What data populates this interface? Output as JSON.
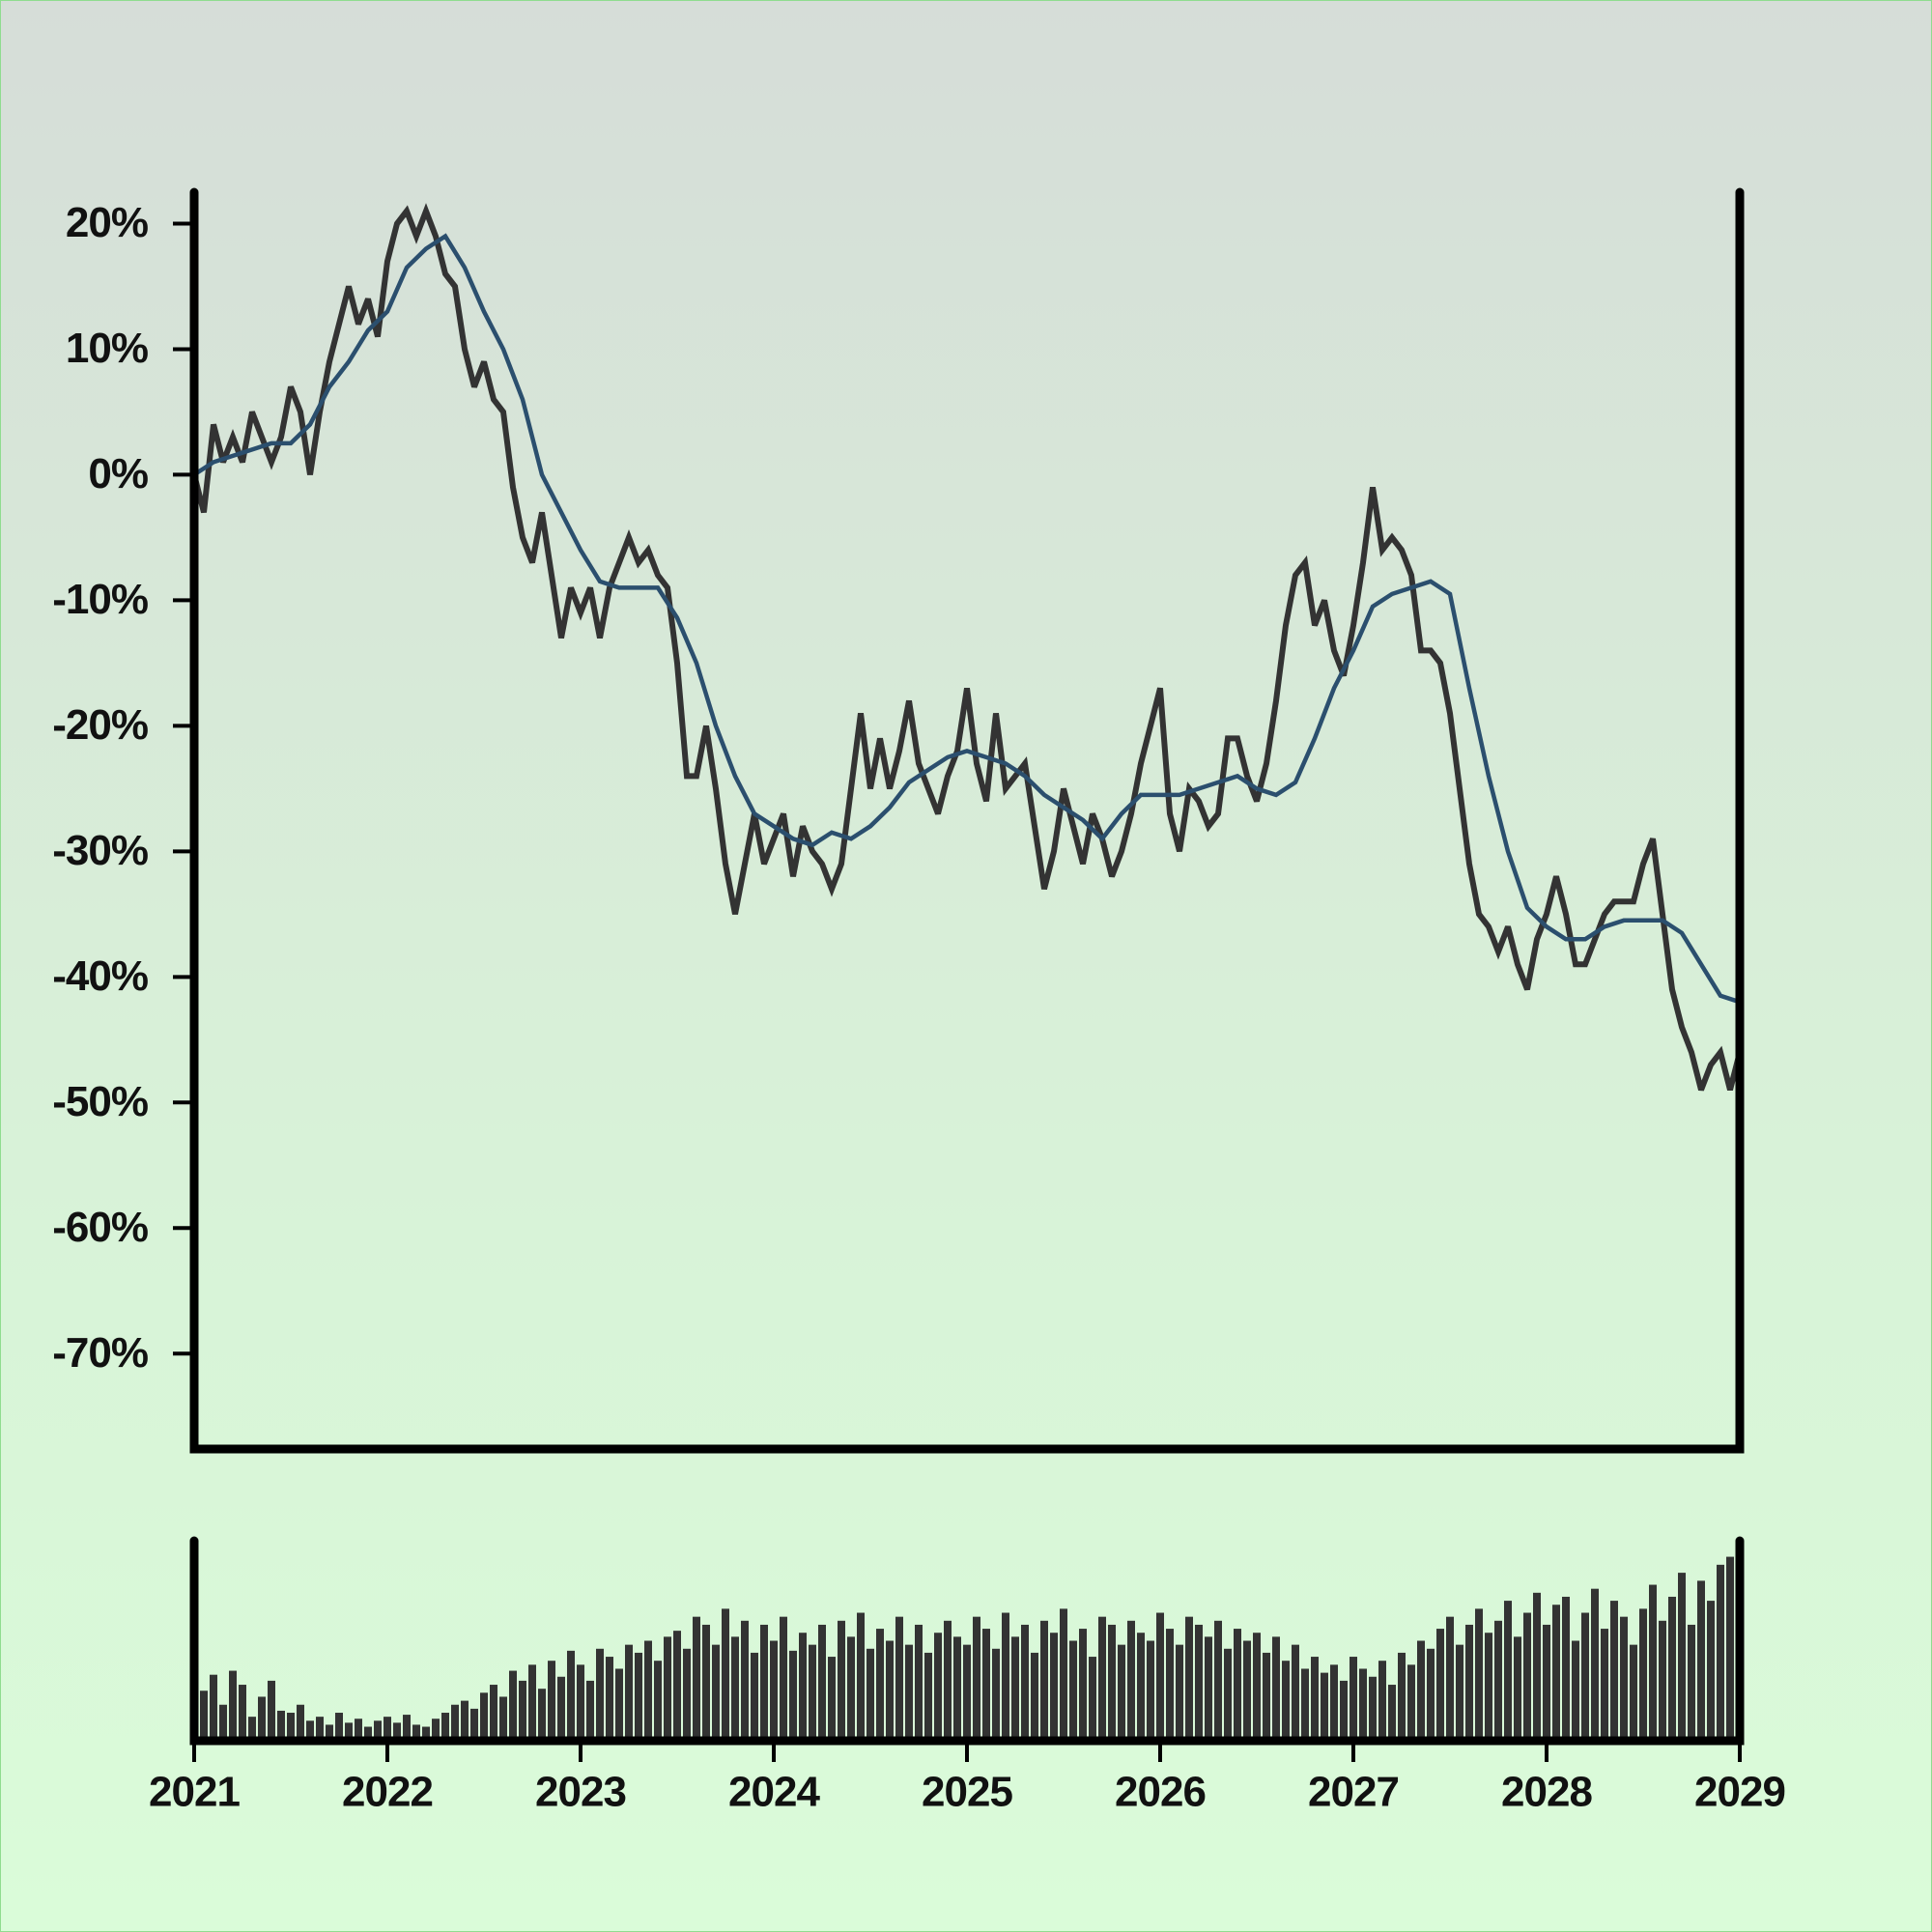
{
  "chart_data": [
    {
      "type": "line",
      "xlim": [
        2021,
        2029
      ],
      "ylim": [
        -77.6,
        22.5
      ],
      "yticks": [
        {
          "value": 20,
          "label": "20%"
        },
        {
          "value": 10,
          "label": "10%"
        },
        {
          "value": 0,
          "label": "0%"
        },
        {
          "value": -10,
          "label": "-10%"
        },
        {
          "value": -20,
          "label": "-20%"
        },
        {
          "value": -30,
          "label": "-30%"
        },
        {
          "value": -40,
          "label": "-40%"
        },
        {
          "value": -50,
          "label": "-50%"
        },
        {
          "value": -60,
          "label": "-60%"
        },
        {
          "value": -70,
          "label": "-70%"
        }
      ],
      "series": [
        {
          "color": "#333333",
          "x": [
            2021,
            2021.05,
            2021.1,
            2021.15,
            2021.2,
            2021.25,
            2021.3,
            2021.35,
            2021.4,
            2021.45,
            2021.5,
            2021.55,
            2021.6,
            2021.65,
            2021.7,
            2021.75,
            2021.8,
            2021.85,
            2021.9,
            2021.95,
            2022,
            2022.05,
            2022.1,
            2022.15,
            2022.2,
            2022.25,
            2022.3,
            2022.35,
            2022.4,
            2022.45,
            2022.5,
            2022.55,
            2022.6,
            2022.65,
            2022.7,
            2022.75,
            2022.8,
            2022.85,
            2022.9,
            2022.95,
            2023,
            2023.05,
            2023.1,
            2023.15,
            2023.2,
            2023.25,
            2023.3,
            2023.35,
            2023.4,
            2023.45,
            2023.5,
            2023.55,
            2023.6,
            2023.65,
            2023.7,
            2023.75,
            2023.8,
            2023.85,
            2023.9,
            2023.95,
            2024,
            2024.05,
            2024.1,
            2024.15,
            2024.2,
            2024.25,
            2024.3,
            2024.35,
            2024.4,
            2024.45,
            2024.5,
            2024.55,
            2024.6,
            2024.65,
            2024.7,
            2024.75,
            2024.8,
            2024.85,
            2024.9,
            2024.95,
            2025,
            2025.05,
            2025.1,
            2025.15,
            2025.2,
            2025.25,
            2025.3,
            2025.35,
            2025.4,
            2025.45,
            2025.5,
            2025.55,
            2025.6,
            2025.65,
            2025.7,
            2025.75,
            2025.8,
            2025.85,
            2025.9,
            2025.95,
            2026,
            2026.05,
            2026.1,
            2026.15,
            2026.2,
            2026.25,
            2026.3,
            2026.35,
            2026.4,
            2026.45,
            2026.5,
            2026.55,
            2026.6,
            2026.65,
            2026.7,
            2026.75,
            2026.8,
            2026.85,
            2026.9,
            2026.95,
            2027,
            2027.05,
            2027.1,
            2027.15,
            2027.2,
            2027.25,
            2027.3,
            2027.35,
            2027.4,
            2027.45,
            2027.5,
            2027.55,
            2027.6,
            2027.65,
            2027.7,
            2027.75,
            2027.8,
            2027.85,
            2027.9,
            2027.95,
            2028,
            2028.05,
            2028.1,
            2028.15,
            2028.2,
            2028.25,
            2028.3,
            2028.35,
            2028.4,
            2028.45,
            2028.5,
            2028.55,
            2028.6,
            2028.65,
            2028.7,
            2028.75,
            2028.8,
            2028.85,
            2028.9,
            2028.95,
            2029
          ],
          "values": [
            0,
            -3,
            4,
            1,
            3,
            1,
            5,
            3,
            1,
            3,
            7,
            5,
            0,
            5,
            9,
            12,
            15,
            12,
            14,
            11,
            17,
            20,
            21,
            19,
            21,
            19,
            16,
            15,
            10,
            7,
            9,
            6,
            5,
            -1,
            -5,
            -7,
            -3,
            -8,
            -13,
            -9,
            -11,
            -9,
            -13,
            -9,
            -7,
            -5,
            -7,
            -6,
            -8,
            -9,
            -15,
            -24,
            -24,
            -20,
            -25,
            -31,
            -35,
            -31,
            -27,
            -31,
            -29,
            -27,
            -32,
            -28,
            -30,
            -31,
            -33,
            -31,
            -25,
            -19,
            -25,
            -21,
            -25,
            -22,
            -18,
            -23,
            -25,
            -27,
            -24,
            -22,
            -17,
            -23,
            -26,
            -19,
            -25,
            -24,
            -23,
            -28,
            -33,
            -30,
            -25,
            -28,
            -31,
            -27,
            -29,
            -32,
            -30,
            -27,
            -23,
            -20,
            -17,
            -27,
            -30,
            -25,
            -26,
            -28,
            -27,
            -21,
            -21,
            -24,
            -26,
            -23,
            -18,
            -12,
            -8,
            -7,
            -12,
            -10,
            -14,
            -16,
            -12,
            -7,
            -1,
            -6,
            -5,
            -6,
            -8,
            -14,
            -14,
            -15,
            -19,
            -25,
            -31,
            -35,
            -36,
            -38,
            -36,
            -39,
            -41,
            -37,
            -35,
            -32,
            -35,
            -39,
            -39,
            -37,
            -35,
            -34,
            -34,
            -34,
            -31,
            -29,
            -35,
            -41,
            -44,
            -46,
            -49,
            -47,
            -46,
            -49,
            -46
          ]
        },
        {
          "color": "#2b4f6e",
          "x": [
            2021,
            2021.1,
            2021.2,
            2021.3,
            2021.4,
            2021.5,
            2021.6,
            2021.7,
            2021.8,
            2021.9,
            2022,
            2022.1,
            2022.2,
            2022.3,
            2022.4,
            2022.5,
            2022.6,
            2022.7,
            2022.8,
            2022.9,
            2023,
            2023.1,
            2023.2,
            2023.3,
            2023.4,
            2023.5,
            2023.6,
            2023.7,
            2023.8,
            2023.9,
            2024,
            2024.1,
            2024.2,
            2024.3,
            2024.4,
            2024.5,
            2024.6,
            2024.7,
            2024.8,
            2024.9,
            2025,
            2025.1,
            2025.2,
            2025.3,
            2025.4,
            2025.5,
            2025.6,
            2025.7,
            2025.8,
            2025.9,
            2026,
            2026.1,
            2026.2,
            2026.3,
            2026.4,
            2026.5,
            2026.6,
            2026.7,
            2026.8,
            2026.9,
            2027,
            2027.1,
            2027.2,
            2027.3,
            2027.4,
            2027.5,
            2027.6,
            2027.7,
            2027.8,
            2027.9,
            2028,
            2028.1,
            2028.2,
            2028.3,
            2028.4,
            2028.5,
            2028.6,
            2028.7,
            2028.8,
            2028.9,
            2029
          ],
          "values": [
            0,
            1,
            1.5,
            2,
            2.5,
            2.5,
            4,
            7,
            9,
            11.5,
            13,
            16.5,
            18,
            19,
            16.5,
            13,
            10,
            6,
            0,
            -3,
            -6,
            -8.5,
            -9,
            -9,
            -9,
            -11.4,
            -15,
            -20,
            -24,
            -27,
            -28,
            -29,
            -29.5,
            -28.5,
            -29,
            -28,
            -26.5,
            -24.5,
            -23.5,
            -22.5,
            -22,
            -22.5,
            -23,
            -24,
            -25.5,
            -26.5,
            -27.5,
            -29,
            -27,
            -25.5,
            -25.5,
            -25.5,
            -25,
            -24.5,
            -24,
            -25,
            -25.5,
            -24.5,
            -21,
            -17,
            -14,
            -10.5,
            -9.5,
            -9,
            -8.5,
            -9.5,
            -17,
            -24,
            -30,
            -34.5,
            -36,
            -37,
            -37,
            -36,
            -35.5,
            -35.5,
            -35.5,
            -36.5,
            -39,
            -41.5,
            -42
          ]
        }
      ]
    },
    {
      "type": "bar",
      "color": "#333333",
      "xlim": [
        2021,
        2029
      ],
      "xticks": [
        2021,
        2022,
        2023,
        2024,
        2025,
        2026,
        2027,
        2028,
        2029
      ],
      "ylim": [
        0,
        100
      ],
      "x": [
        2021,
        2021.05,
        2021.1,
        2021.15,
        2021.2,
        2021.25,
        2021.3,
        2021.35,
        2021.4,
        2021.45,
        2021.5,
        2021.55,
        2021.6,
        2021.65,
        2021.7,
        2021.75,
        2021.8,
        2021.85,
        2021.9,
        2021.95,
        2022,
        2022.05,
        2022.1,
        2022.15,
        2022.2,
        2022.25,
        2022.3,
        2022.35,
        2022.4,
        2022.45,
        2022.5,
        2022.55,
        2022.6,
        2022.65,
        2022.7,
        2022.75,
        2022.8,
        2022.85,
        2022.9,
        2022.95,
        2023,
        2023.05,
        2023.1,
        2023.15,
        2023.2,
        2023.25,
        2023.3,
        2023.35,
        2023.4,
        2023.45,
        2023.5,
        2023.55,
        2023.6,
        2023.65,
        2023.7,
        2023.75,
        2023.8,
        2023.85,
        2023.9,
        2023.95,
        2024,
        2024.05,
        2024.1,
        2024.15,
        2024.2,
        2024.25,
        2024.3,
        2024.35,
        2024.4,
        2024.45,
        2024.5,
        2024.55,
        2024.6,
        2024.65,
        2024.7,
        2024.75,
        2024.8,
        2024.85,
        2024.9,
        2024.95,
        2025,
        2025.05,
        2025.1,
        2025.15,
        2025.2,
        2025.25,
        2025.3,
        2025.35,
        2025.4,
        2025.45,
        2025.5,
        2025.55,
        2025.6,
        2025.65,
        2025.7,
        2025.75,
        2025.8,
        2025.85,
        2025.9,
        2025.95,
        2026,
        2026.05,
        2026.1,
        2026.15,
        2026.2,
        2026.25,
        2026.3,
        2026.35,
        2026.4,
        2026.45,
        2026.5,
        2026.55,
        2026.6,
        2026.65,
        2026.7,
        2026.75,
        2026.8,
        2026.85,
        2026.9,
        2026.95,
        2027,
        2027.05,
        2027.1,
        2027.15,
        2027.2,
        2027.25,
        2027.3,
        2027.35,
        2027.4,
        2027.45,
        2027.5,
        2027.55,
        2027.6,
        2027.65,
        2027.7,
        2027.75,
        2027.8,
        2027.85,
        2027.9,
        2027.95,
        2028,
        2028.05,
        2028.1,
        2028.15,
        2028.2,
        2028.25,
        2028.3,
        2028.35,
        2028.4,
        2028.45,
        2028.5,
        2028.55,
        2028.6,
        2028.65,
        2028.7,
        2028.75,
        2028.8,
        2028.85,
        2028.9,
        2028.95,
        2029
      ],
      "values": [
        30,
        25,
        33,
        18,
        35,
        28,
        12,
        22,
        30,
        15,
        14,
        18,
        10,
        12,
        8,
        14,
        9,
        11,
        7,
        10,
        12,
        9,
        13,
        8,
        7,
        11,
        14,
        18,
        20,
        16,
        24,
        28,
        22,
        35,
        30,
        38,
        26,
        40,
        32,
        45,
        38,
        30,
        46,
        42,
        36,
        48,
        44,
        50,
        40,
        52,
        55,
        46,
        62,
        58,
        48,
        66,
        52,
        60,
        44,
        58,
        50,
        62,
        45,
        54,
        48,
        58,
        42,
        60,
        52,
        64,
        46,
        56,
        50,
        62,
        48,
        58,
        44,
        54,
        60,
        52,
        48,
        62,
        56,
        46,
        64,
        52,
        58,
        44,
        60,
        54,
        66,
        50,
        56,
        42,
        62,
        58,
        48,
        60,
        54,
        50,
        64,
        56,
        48,
        62,
        58,
        52,
        60,
        46,
        56,
        50,
        54,
        44,
        52,
        40,
        48,
        36,
        42,
        34,
        38,
        30,
        42,
        36,
        32,
        40,
        28,
        44,
        38,
        50,
        46,
        56,
        62,
        48,
        58,
        66,
        54,
        60,
        70,
        52,
        64,
        74,
        58,
        68,
        72,
        50,
        64,
        76,
        56,
        70,
        62,
        48,
        66,
        78,
        60,
        72,
        84,
        58,
        80,
        70,
        88,
        92,
        76
      ]
    }
  ]
}
